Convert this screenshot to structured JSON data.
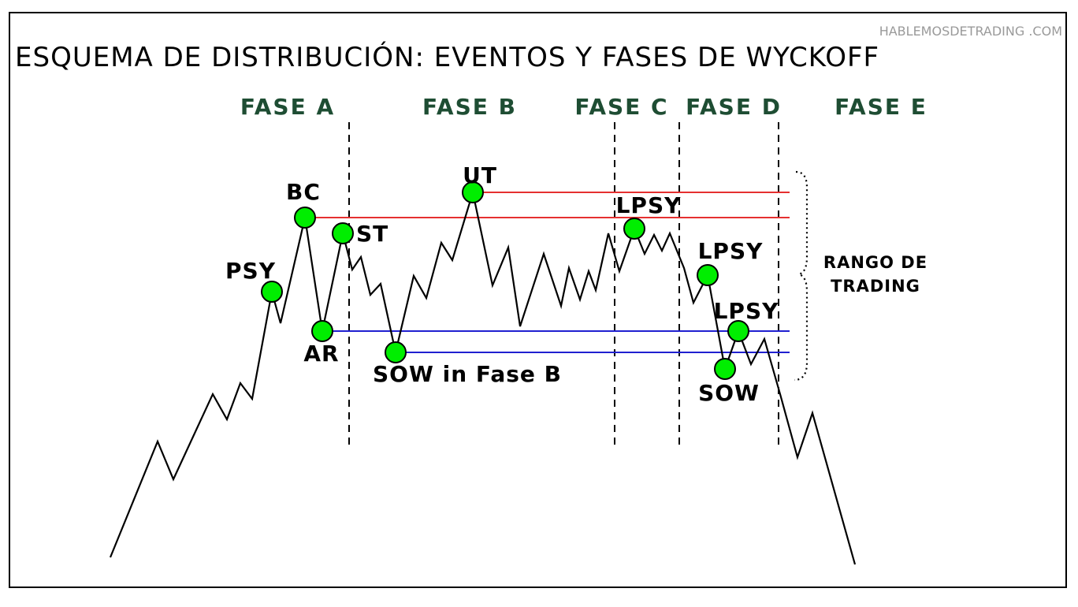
{
  "watermark": "HABLEMOSDETRADING .COM",
  "title": "ESQUEMA DE DISTRIBUCIÓN: EVENTOS Y FASES DE  WYCKOFF",
  "colors": {
    "phase_label": "#1e4d33",
    "resistance_lines": "#e53030",
    "support_lines": "#2020d0",
    "event_marker": "#00ee00",
    "price_line": "#000000"
  },
  "phases": [
    {
      "label": "FASE A"
    },
    {
      "label": "FASE B"
    },
    {
      "label": "FASE C"
    },
    {
      "label": "FASE D"
    },
    {
      "label": "FASE E"
    }
  ],
  "events": [
    {
      "label": "PSY"
    },
    {
      "label": "BC"
    },
    {
      "label": "AR"
    },
    {
      "label": "ST"
    },
    {
      "label": "SOW in Fase B"
    },
    {
      "label": "UT"
    },
    {
      "label": "LPSY"
    },
    {
      "label": "LPSY"
    },
    {
      "label": "SOW"
    },
    {
      "label": "LPSY"
    }
  ],
  "trading_range": {
    "label_line1": "RANGO DE",
    "label_line2": "TRADING"
  }
}
